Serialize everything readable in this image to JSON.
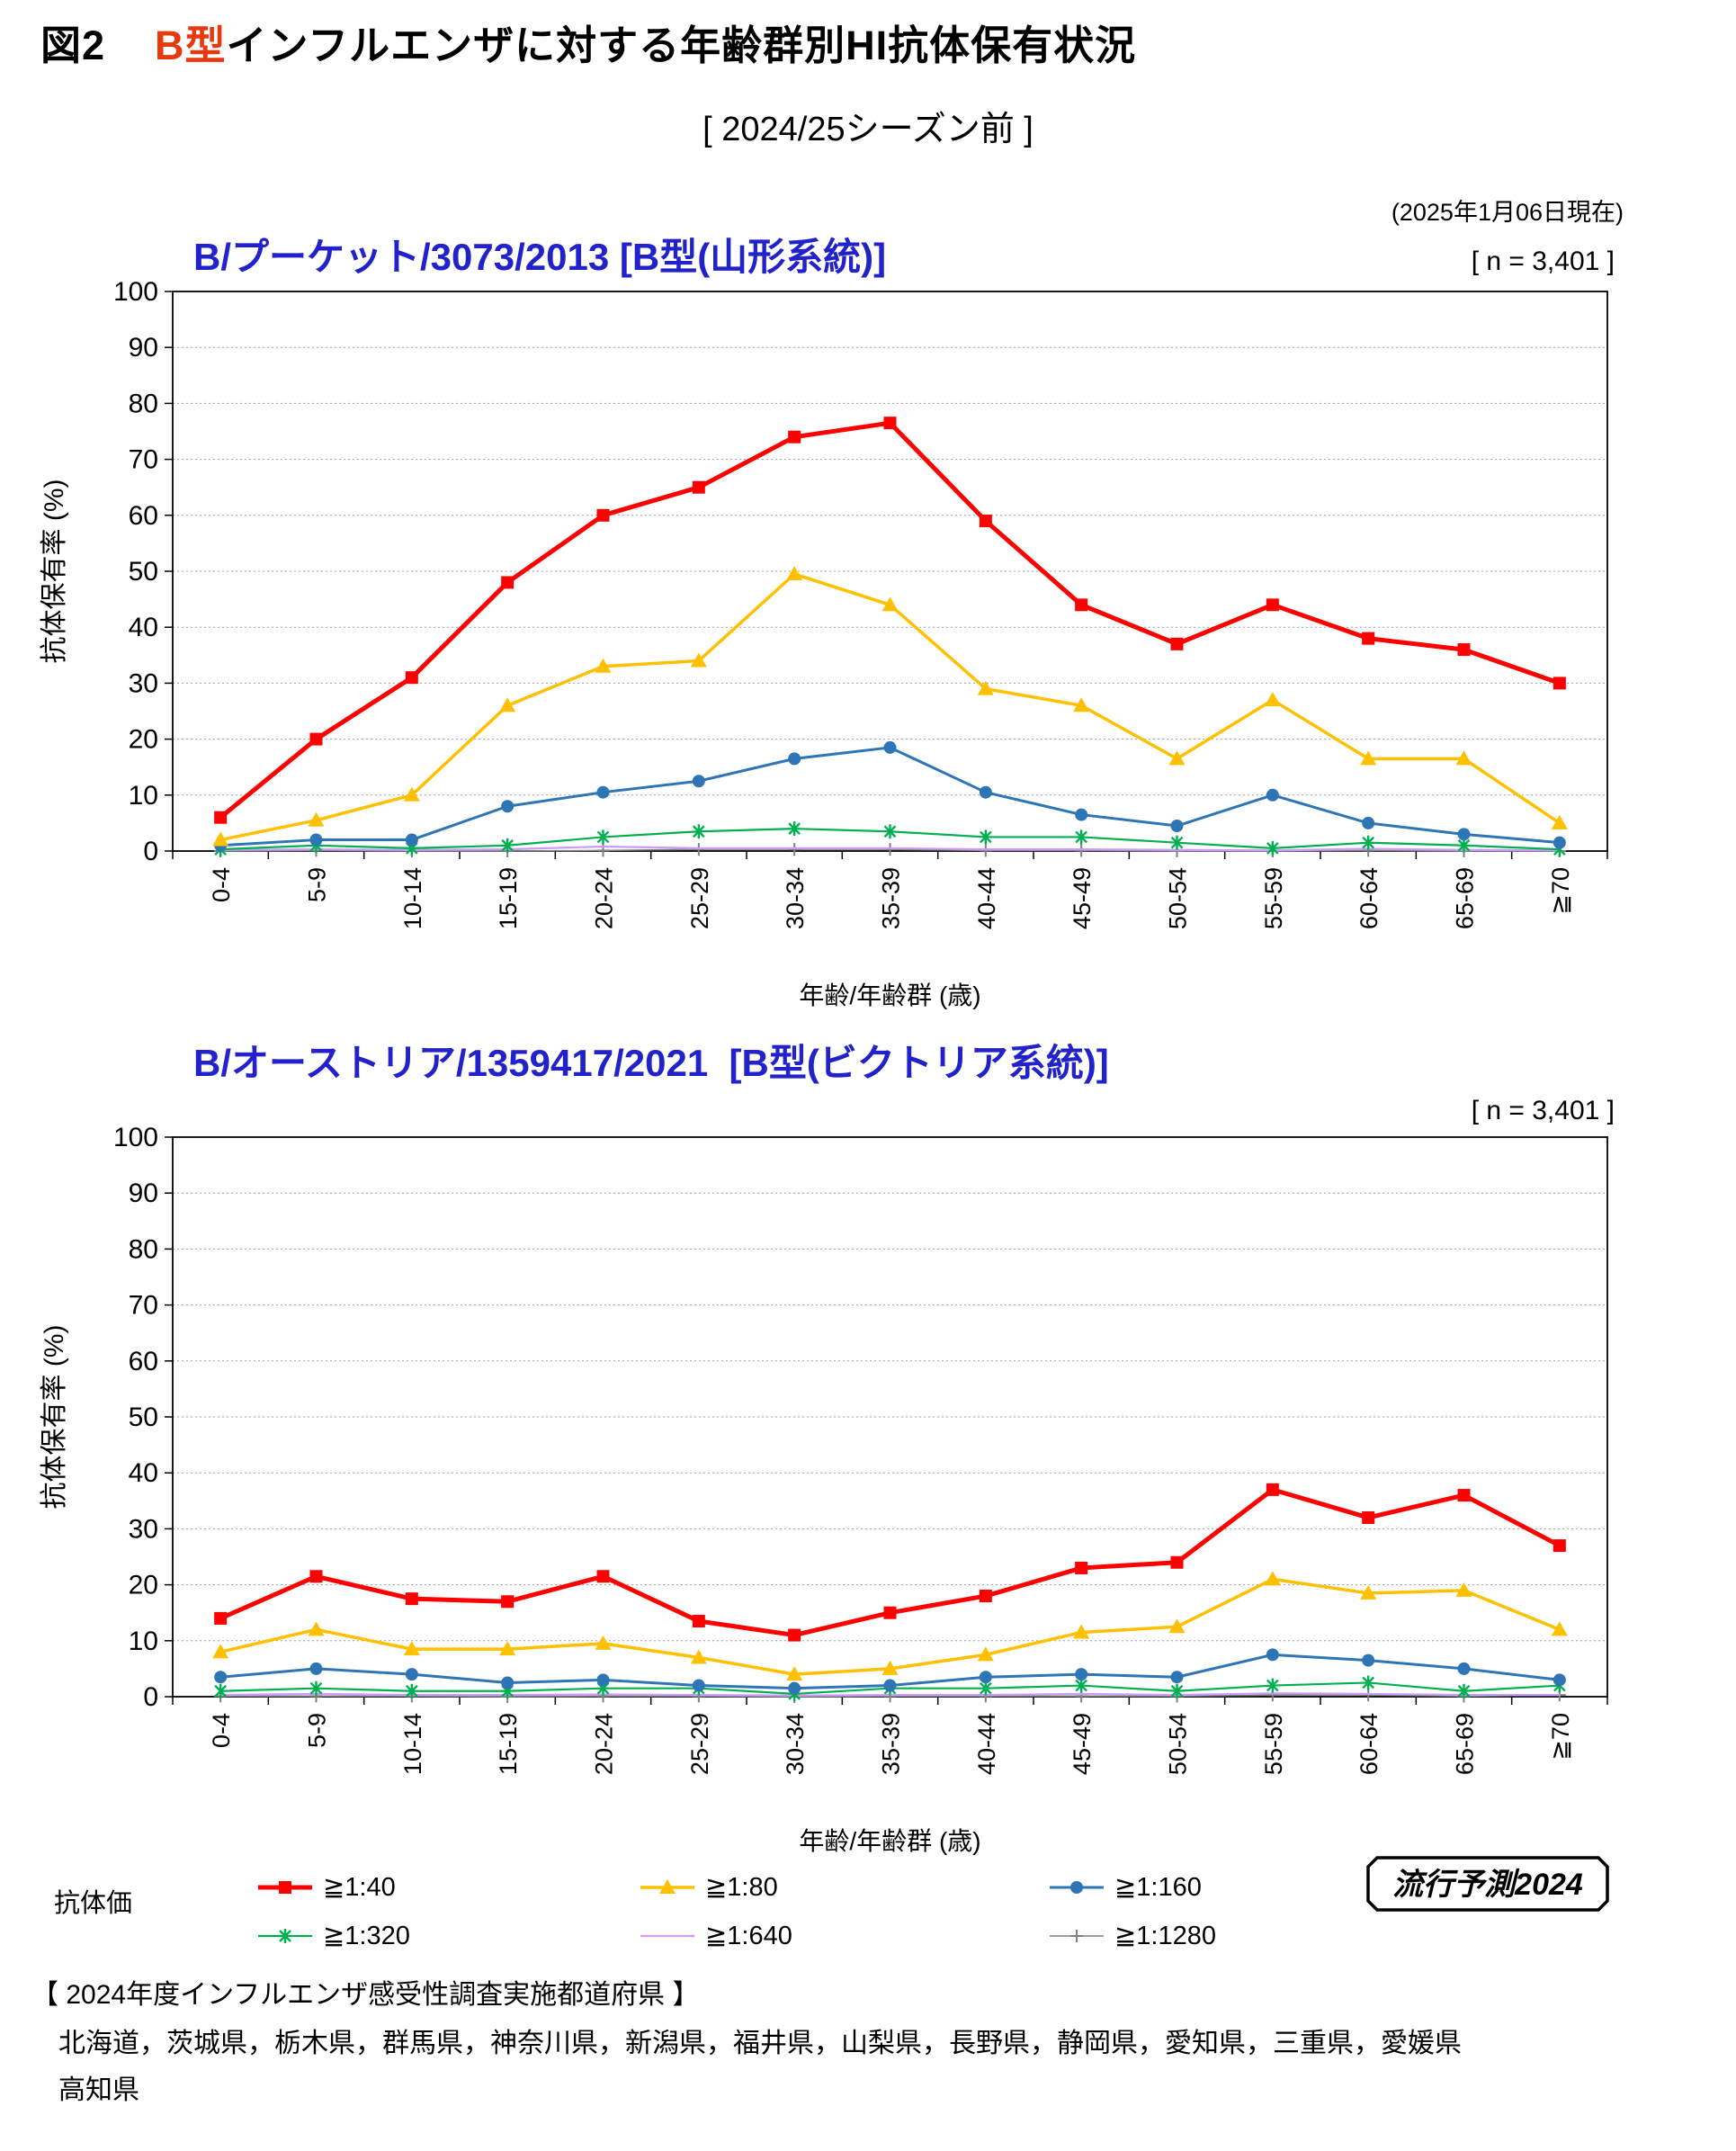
{
  "page": {
    "fig_label": "図2",
    "title_highlight": "B型",
    "title_rest": "インフルエンザに対する年齢群別HI抗体保有状況",
    "season_subtitle": "[ 2024/25シーズン前 ]",
    "date_note": "(2025年1月06日現在)"
  },
  "legend": {
    "label": "抗体価",
    "rows": [
      [
        "≧1:40",
        "≧1:80",
        "≧1:160"
      ],
      [
        "≧1:320",
        "≧1:640",
        "≧1:1280"
      ]
    ]
  },
  "badge": "流行予測2024",
  "footer": {
    "heading": "【 2024年度インフルエンザ感受性調査実施都道府県 】",
    "line1": "北海道，茨城県，栃木県，群馬県，神奈川県，新潟県，福井県，山梨県，長野県，静岡県，愛知県，三重県，愛媛県",
    "line2": "高知県"
  },
  "chart_data": [
    {
      "type": "line",
      "title": "B/プーケット/3073/2013 [B型(山形系統)]",
      "n_label": "[ n = 3,401 ]",
      "xlabel": "年齢/年齢群 (歳)",
      "ylabel": "抗体保有率 (%)",
      "ylim": [
        0,
        100
      ],
      "ytick_step": 10,
      "grid": true,
      "legend_position": "bottom-shared",
      "categories": [
        "0-4",
        "5-9",
        "10-14",
        "15-19",
        "20-24",
        "25-29",
        "30-34",
        "35-39",
        "40-44",
        "45-49",
        "50-54",
        "55-59",
        "60-64",
        "65-69",
        "≧70"
      ],
      "series": [
        {
          "name": "≧1:40",
          "color": "#FF0000",
          "marker": "square",
          "width": 5,
          "values": [
            6,
            20,
            31,
            48,
            60,
            65,
            74,
            76.5,
            59,
            44,
            37,
            44,
            38,
            36,
            30
          ]
        },
        {
          "name": "≧1:80",
          "color": "#FFC000",
          "marker": "triangle",
          "width": 3.5,
          "values": [
            2,
            5.5,
            10,
            26,
            33,
            34,
            49.5,
            44,
            29,
            26,
            16.5,
            27,
            16.5,
            16.5,
            5
          ]
        },
        {
          "name": "≧1:160",
          "color": "#2E75B6",
          "marker": "circle",
          "width": 3,
          "values": [
            1,
            2,
            2,
            8,
            10.5,
            12.5,
            16.5,
            18.5,
            10.5,
            6.5,
            4.5,
            10,
            5,
            3,
            1.5
          ]
        },
        {
          "name": "≧1:320",
          "color": "#00B050",
          "marker": "asterisk",
          "width": 2.2,
          "values": [
            0.3,
            1,
            0.5,
            1,
            2.5,
            3.5,
            4,
            3.5,
            2.5,
            2.5,
            1.5,
            0.5,
            1.5,
            1,
            0.3
          ]
        },
        {
          "name": "≧1:640",
          "color": "#CC99FF",
          "marker": "none",
          "width": 2.2,
          "values": [
            0.2,
            0.3,
            0.2,
            0.3,
            0.8,
            0.5,
            0.5,
            0.5,
            0.3,
            0.3,
            0.2,
            0.1,
            0.4,
            0.2,
            0.1
          ]
        },
        {
          "name": "≧1:1280",
          "color": "#808080",
          "marker": "plus",
          "width": 1.5,
          "values": [
            0,
            0.1,
            0,
            0,
            0.1,
            0.3,
            0.3,
            0.3,
            0.1,
            0.1,
            0,
            0,
            0.1,
            0,
            0
          ]
        }
      ]
    },
    {
      "type": "line",
      "title": "B/オーストリア/1359417/2021  [B型(ビクトリア系統)]",
      "n_label": "[ n = 3,401 ]",
      "xlabel": "年齢/年齢群 (歳)",
      "ylabel": "抗体保有率 (%)",
      "ylim": [
        0,
        100
      ],
      "ytick_step": 10,
      "grid": true,
      "legend_position": "bottom-shared",
      "categories": [
        "0-4",
        "5-9",
        "10-14",
        "15-19",
        "20-24",
        "25-29",
        "30-34",
        "35-39",
        "40-44",
        "45-49",
        "50-54",
        "55-59",
        "60-64",
        "65-69",
        "≧70"
      ],
      "series": [
        {
          "name": "≧1:40",
          "color": "#FF0000",
          "marker": "square",
          "width": 5,
          "values": [
            14,
            21.5,
            17.5,
            17,
            21.5,
            13.5,
            11,
            15,
            18,
            23,
            24,
            37,
            32,
            36,
            27
          ]
        },
        {
          "name": "≧1:80",
          "color": "#FFC000",
          "marker": "triangle",
          "width": 3.5,
          "values": [
            8,
            12,
            8.5,
            8.5,
            9.5,
            7,
            4,
            5,
            7.5,
            11.5,
            12.5,
            21,
            18.5,
            19,
            12
          ]
        },
        {
          "name": "≧1:160",
          "color": "#2E75B6",
          "marker": "circle",
          "width": 3,
          "values": [
            3.5,
            5,
            4,
            2.5,
            3,
            2,
            1.5,
            2,
            3.5,
            4,
            3.5,
            7.5,
            6.5,
            5,
            3
          ]
        },
        {
          "name": "≧1:320",
          "color": "#00B050",
          "marker": "asterisk",
          "width": 2.2,
          "values": [
            1,
            1.5,
            1,
            1,
            1.5,
            1.5,
            0.5,
            1.5,
            1.5,
            2,
            1,
            2,
            2.5,
            1,
            2
          ]
        },
        {
          "name": "≧1:640",
          "color": "#CC99FF",
          "marker": "none",
          "width": 2.2,
          "values": [
            0.3,
            0.5,
            0.3,
            0.3,
            0.4,
            0.3,
            0.2,
            0.3,
            0.3,
            0.5,
            0.3,
            0.6,
            0.5,
            0.3,
            0.3
          ]
        },
        {
          "name": "≧1:1280",
          "color": "#808080",
          "marker": "plus",
          "width": 1.5,
          "values": [
            0.1,
            0.1,
            0.1,
            0,
            0.1,
            0.1,
            0,
            0.1,
            0.1,
            0.1,
            0.1,
            0.3,
            0.3,
            0.1,
            0.3
          ]
        }
      ]
    }
  ]
}
